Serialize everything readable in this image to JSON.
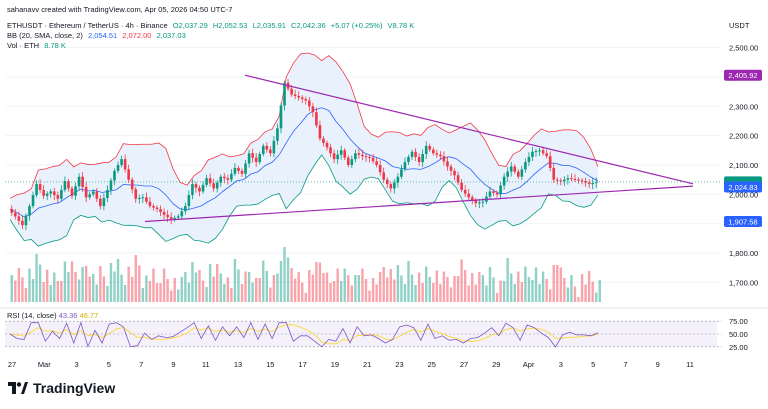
{
  "credit": "sahanavv created with TradingView.com, Apr 05, 2026 04:50 UTC-7",
  "currency": "USDT",
  "brand": "TradingView",
  "header": {
    "symbol": "ETHUSDT · Ethereum / TetherUS · 4h · Binance",
    "open": "O2,037.29",
    "high": "H2,052.53",
    "low": "L2,035.91",
    "close": "C2,042.36",
    "change": "+5.07 (+0.25%)",
    "volume": "V8.78 K",
    "bb_label": "BB (20, SMA, close, 2)",
    "bb_mid": "2,054.51",
    "bb_upper": "2,072.00",
    "bb_lower": "2,037.03",
    "vol_label": "Vol · ETH",
    "vol_value": "8.78 K",
    "rsi_label": "RSI (14, close)",
    "rsi_value": "43.36",
    "rsi_ma": "46.77"
  },
  "colors": {
    "up": "#089981",
    "down": "#f23645",
    "bb_mid": "#2962ff",
    "bb_fill": "#e3effb",
    "trendline": "#9c27b0",
    "rsi_line": "#7e57c2",
    "rsi_ma": "#fdd835",
    "rsi_band": "#ede7f6"
  },
  "chart_data": {
    "type": "candlestick",
    "timeframe": "4h",
    "y_axis": {
      "ticks": [
        1700,
        1800,
        1900,
        2000,
        2100,
        2200,
        2300,
        2400,
        2500
      ],
      "tick_labels": [
        "1,700.00",
        "1,800.00",
        "1,900.00",
        "2,000.00",
        "2,100.00",
        "2,200.00",
        "2,300.00",
        "2,400.00",
        "2,500.00"
      ],
      "ylim": [
        1640,
        2560
      ]
    },
    "x_axis": {
      "labels": [
        "27",
        "Mar",
        "3",
        "5",
        "7",
        "9",
        "11",
        "13",
        "15",
        "17",
        "19",
        "21",
        "23",
        "25",
        "27",
        "29",
        "Apr",
        "3",
        "5",
        "7",
        "9",
        "11"
      ]
    },
    "price_labels": [
      {
        "text": "2,405.92",
        "value": 2405.92,
        "color": "#9c27b0"
      },
      {
        "text": "2,042.36",
        "value": 2042.36,
        "color": "#089981"
      },
      {
        "text": "2,036.23",
        "value": 2036.23,
        "color": "#089981"
      },
      {
        "text": "2,024.83",
        "value": 2024.83,
        "color": "#2962ff"
      },
      {
        "text": "1,907.58",
        "value": 1907.58,
        "color": "#2962ff"
      }
    ],
    "price_path": [
      1950,
      1925,
      1895,
      1960,
      2035,
      1995,
      2010,
      1985,
      2045,
      1995,
      2060,
      1990,
      2010,
      1960,
      2015,
      2080,
      2120,
      2050,
      1985,
      1990,
      1960,
      1950,
      1930,
      1915,
      1925,
      1960,
      2035,
      2010,
      2055,
      2020,
      2060,
      2050,
      2090,
      2070,
      2140,
      2110,
      2165,
      2140,
      2225,
      2380,
      2340,
      2330,
      2320,
      2280,
      2190,
      2160,
      2120,
      2150,
      2100,
      2140,
      2130,
      2125,
      2100,
      2050,
      2020,
      2060,
      2110,
      2145,
      2110,
      2165,
      2140,
      2130,
      2095,
      2065,
      2015,
      1990,
      1970,
      1975,
      2010,
      2000,
      2060,
      2095,
      2060,
      2110,
      2145,
      2150,
      2130,
      2050,
      2045,
      2055,
      2050,
      2045,
      2035,
      2042
    ],
    "volume_ticks": [],
    "rsi": {
      "levels": [
        25,
        50,
        75
      ],
      "level_labels": [
        "25.00",
        "50.00",
        "75.00"
      ],
      "last": 43.36,
      "ma_last": 46.77
    },
    "triangle": {
      "upper_start": 2405.92,
      "lower_start": 1907.58
    }
  }
}
